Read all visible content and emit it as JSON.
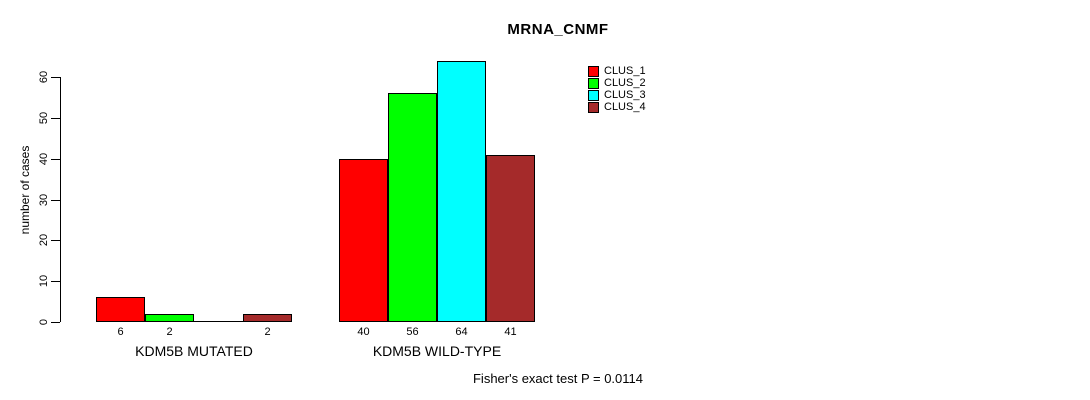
{
  "chart_data": {
    "type": "bar",
    "title": "MRNA_CNMF",
    "xlabel": "",
    "ylabel": "number of cases",
    "ylim": [
      0,
      60
    ],
    "yticks": [
      0,
      10,
      20,
      30,
      40,
      50,
      60
    ],
    "grid": false,
    "legend_position": "top-right",
    "categories": [
      "KDM5B MUTATED",
      "KDM5B WILD-TYPE"
    ],
    "series": [
      {
        "name": "CLUS_1",
        "color": "#FF0000",
        "values": [
          6,
          40
        ]
      },
      {
        "name": "CLUS_2",
        "color": "#00FF00",
        "values": [
          2,
          56
        ]
      },
      {
        "name": "CLUS_3",
        "color": "#00FFFF",
        "values": [
          0,
          64
        ]
      },
      {
        "name": "CLUS_4",
        "color": "#A52A2A",
        "values": [
          2,
          41
        ]
      }
    ],
    "bar_value_labels_shown": true,
    "zero_values_unlabeled": true,
    "annotation": "Fisher's exact test P = 0.0114"
  }
}
